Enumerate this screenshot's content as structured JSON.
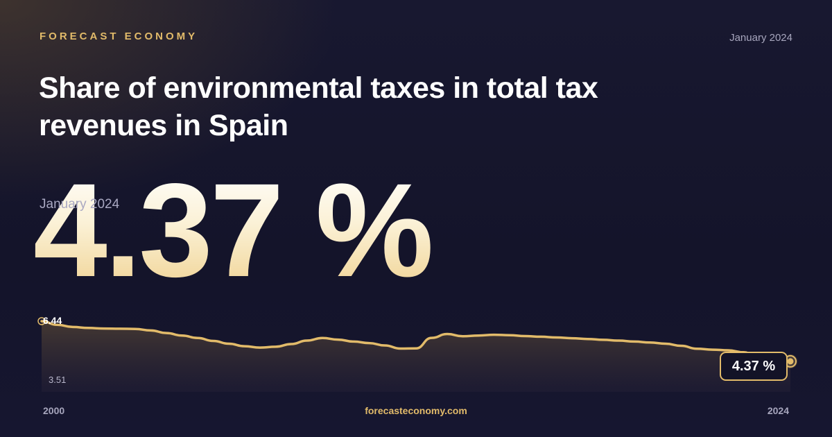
{
  "header": {
    "brand": "FORECAST ECONOMY",
    "date": "January 2024",
    "title": "Share of environmental taxes in total tax revenues in Spain"
  },
  "headline": {
    "value": "4.37 %",
    "date": "January 2024"
  },
  "footer": {
    "site": "forecasteconomy.com"
  },
  "colors": {
    "accent": "#e2bb6a",
    "background": "#15152b",
    "text": "#ffffff",
    "muted": "#a7a6bd"
  },
  "chart_data": {
    "type": "area",
    "title": "Share of environmental taxes in total tax revenues in Spain",
    "xlabel": "",
    "ylabel": "",
    "x_start_label": "2000",
    "x_end_label": "2024",
    "y_max_label": "6.44",
    "y_min_label": "3.51",
    "last_value_label": "4.37 %",
    "grid": false,
    "ylim": [
      3.51,
      6.44
    ],
    "x": [
      2000.0,
      2000.5,
      2001.0,
      2001.5,
      2002.0,
      2002.5,
      2003.0,
      2003.5,
      2004.0,
      2004.5,
      2005.0,
      2005.5,
      2006.0,
      2006.5,
      2007.0,
      2007.5,
      2008.0,
      2008.5,
      2009.0,
      2009.5,
      2010.0,
      2010.5,
      2011.0,
      2011.5,
      2012.0,
      2012.5,
      2013.0,
      2013.5,
      2014.0,
      2014.5,
      2015.0,
      2015.5,
      2016.0,
      2016.5,
      2017.0,
      2017.5,
      2018.0,
      2018.5,
      2019.0,
      2019.5,
      2020.0,
      2020.5,
      2021.0,
      2021.5,
      2022.0,
      2022.5,
      2023.0,
      2023.5,
      2024.0
    ],
    "series": [
      {
        "values": [
          6.44,
          6.25,
          6.14,
          6.09,
          6.06,
          6.05,
          6.04,
          5.96,
          5.83,
          5.7,
          5.57,
          5.42,
          5.28,
          5.15,
          5.08,
          5.12,
          5.26,
          5.44,
          5.57,
          5.49,
          5.39,
          5.31,
          5.19,
          5.03,
          5.04,
          5.58,
          5.78,
          5.66,
          5.7,
          5.74,
          5.72,
          5.67,
          5.64,
          5.6,
          5.56,
          5.52,
          5.48,
          5.44,
          5.39,
          5.34,
          5.28,
          5.17,
          5.02,
          4.97,
          4.94,
          4.84,
          4.55,
          4.4,
          4.37
        ]
      }
    ]
  }
}
